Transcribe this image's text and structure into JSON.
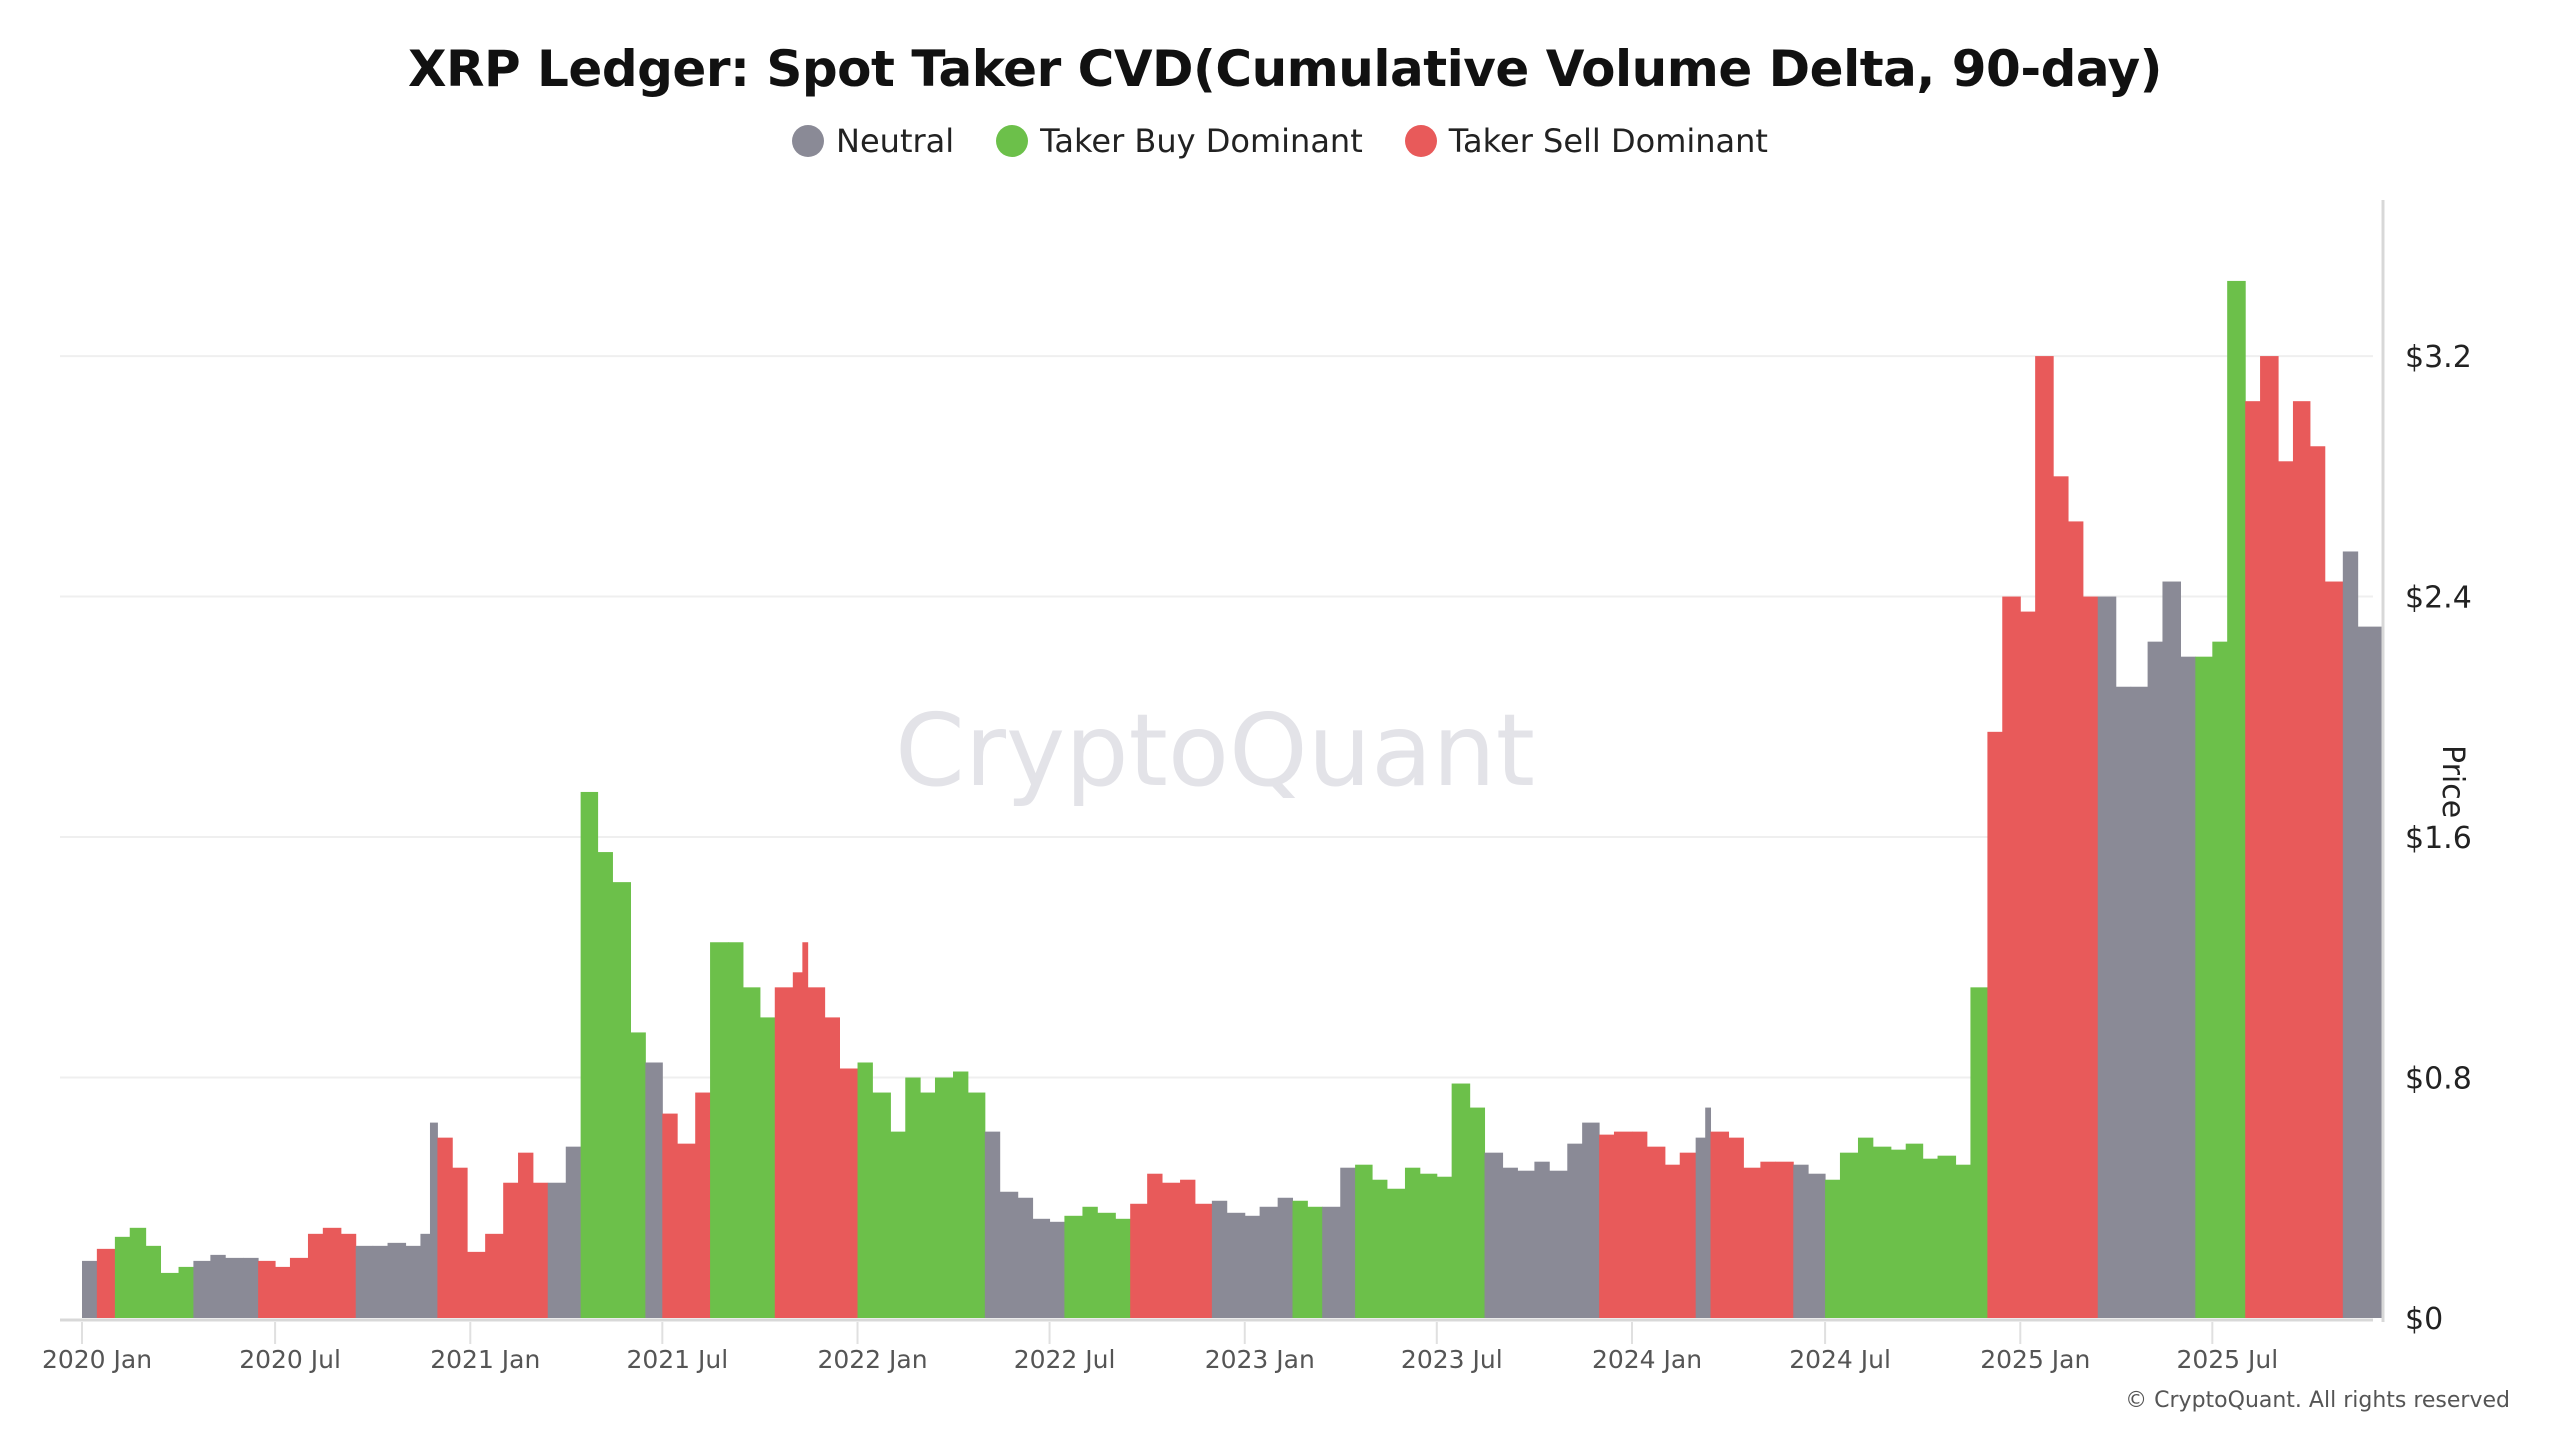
{
  "chart_data": {
    "type": "bar",
    "title": "XRP Ledger: Spot Taker CVD(Cumulative Volume Delta, 90-day)",
    "ylabel": "Price",
    "xlabel": "",
    "ylim": [
      0,
      3.7
    ],
    "yticks": [
      "$0",
      "$0.8",
      "$1.6",
      "$2.4",
      "$3.2"
    ],
    "ytick_values": [
      0,
      0.8,
      1.6,
      2.4,
      3.2
    ],
    "xticks": [
      "2020 Jan",
      "2020 Jul",
      "2021 Jan",
      "2021 Jul",
      "2022 Jan",
      "2022 Jul",
      "2023 Jan",
      "2023 Jul",
      "2024 Jan",
      "2024 Jul",
      "2025 Jan",
      "2025 Jul"
    ],
    "xtick_dates": [
      "2020-01-01",
      "2020-07-01",
      "2021-01-01",
      "2021-07-01",
      "2022-01-01",
      "2022-07-01",
      "2023-01-01",
      "2023-07-01",
      "2024-01-01",
      "2024-07-01",
      "2025-01-01",
      "2025-07-01"
    ],
    "grid": true,
    "legend_position": "top-center",
    "legend": [
      {
        "key": "N",
        "name": "Neutral",
        "color": "#8a8a96"
      },
      {
        "key": "B",
        "name": "Taker Buy Dominant",
        "color": "#6cc04a"
      },
      {
        "key": "S",
        "name": "Taker Sell Dominant",
        "color": "#e85a5a"
      }
    ],
    "points": [
      [
        "2020-01-01",
        0.19,
        "N"
      ],
      [
        "2020-01-15",
        0.23,
        "S"
      ],
      [
        "2020-02-01",
        0.27,
        "B"
      ],
      [
        "2020-02-15",
        0.3,
        "B"
      ],
      [
        "2020-03-01",
        0.24,
        "B"
      ],
      [
        "2020-03-15",
        0.15,
        "B"
      ],
      [
        "2020-04-01",
        0.17,
        "B"
      ],
      [
        "2020-04-15",
        0.19,
        "N"
      ],
      [
        "2020-05-01",
        0.21,
        "N"
      ],
      [
        "2020-05-15",
        0.2,
        "N"
      ],
      [
        "2020-06-01",
        0.2,
        "N"
      ],
      [
        "2020-06-15",
        0.19,
        "S"
      ],
      [
        "2020-07-01",
        0.17,
        "S"
      ],
      [
        "2020-07-15",
        0.2,
        "S"
      ],
      [
        "2020-08-01",
        0.28,
        "S"
      ],
      [
        "2020-08-15",
        0.3,
        "S"
      ],
      [
        "2020-09-01",
        0.28,
        "S"
      ],
      [
        "2020-09-15",
        0.24,
        "N"
      ],
      [
        "2020-10-01",
        0.24,
        "N"
      ],
      [
        "2020-10-15",
        0.25,
        "N"
      ],
      [
        "2020-11-01",
        0.24,
        "N"
      ],
      [
        "2020-11-15",
        0.28,
        "N"
      ],
      [
        "2020-11-24",
        0.65,
        "N"
      ],
      [
        "2020-12-01",
        0.6,
        "S"
      ],
      [
        "2020-12-15",
        0.5,
        "S"
      ],
      [
        "2020-12-29",
        0.22,
        "S"
      ],
      [
        "2021-01-15",
        0.28,
        "S"
      ],
      [
        "2021-02-01",
        0.45,
        "S"
      ],
      [
        "2021-02-15",
        0.55,
        "S"
      ],
      [
        "2021-03-01",
        0.45,
        "S"
      ],
      [
        "2021-03-15",
        0.45,
        "N"
      ],
      [
        "2021-04-01",
        0.57,
        "N"
      ],
      [
        "2021-04-15",
        1.75,
        "B"
      ],
      [
        "2021-05-01",
        1.55,
        "B"
      ],
      [
        "2021-05-15",
        1.45,
        "B"
      ],
      [
        "2021-06-01",
        0.95,
        "B"
      ],
      [
        "2021-06-15",
        0.85,
        "N"
      ],
      [
        "2021-07-01",
        0.68,
        "S"
      ],
      [
        "2021-07-15",
        0.58,
        "S"
      ],
      [
        "2021-08-01",
        0.75,
        "S"
      ],
      [
        "2021-08-15",
        1.25,
        "B"
      ],
      [
        "2021-09-01",
        1.25,
        "B"
      ],
      [
        "2021-09-15",
        1.1,
        "B"
      ],
      [
        "2021-10-01",
        1.0,
        "B"
      ],
      [
        "2021-10-15",
        1.1,
        "S"
      ],
      [
        "2021-11-01",
        1.15,
        "S"
      ],
      [
        "2021-11-10",
        1.25,
        "S"
      ],
      [
        "2021-11-15",
        1.1,
        "S"
      ],
      [
        "2021-12-01",
        1.0,
        "S"
      ],
      [
        "2021-12-15",
        0.83,
        "S"
      ],
      [
        "2022-01-01",
        0.85,
        "B"
      ],
      [
        "2022-01-15",
        0.75,
        "B"
      ],
      [
        "2022-02-01",
        0.62,
        "B"
      ],
      [
        "2022-02-15",
        0.8,
        "B"
      ],
      [
        "2022-03-01",
        0.75,
        "B"
      ],
      [
        "2022-03-15",
        0.8,
        "B"
      ],
      [
        "2022-04-01",
        0.82,
        "B"
      ],
      [
        "2022-04-15",
        0.75,
        "B"
      ],
      [
        "2022-05-01",
        0.62,
        "N"
      ],
      [
        "2022-05-15",
        0.42,
        "N"
      ],
      [
        "2022-06-01",
        0.4,
        "N"
      ],
      [
        "2022-06-15",
        0.33,
        "N"
      ],
      [
        "2022-07-01",
        0.32,
        "N"
      ],
      [
        "2022-07-15",
        0.34,
        "B"
      ],
      [
        "2022-08-01",
        0.37,
        "B"
      ],
      [
        "2022-08-15",
        0.35,
        "B"
      ],
      [
        "2022-09-01",
        0.33,
        "B"
      ],
      [
        "2022-09-15",
        0.38,
        "S"
      ],
      [
        "2022-10-01",
        0.48,
        "S"
      ],
      [
        "2022-10-15",
        0.45,
        "S"
      ],
      [
        "2022-11-01",
        0.46,
        "S"
      ],
      [
        "2022-11-15",
        0.38,
        "S"
      ],
      [
        "2022-12-01",
        0.39,
        "N"
      ],
      [
        "2022-12-15",
        0.35,
        "N"
      ],
      [
        "2023-01-01",
        0.34,
        "N"
      ],
      [
        "2023-01-15",
        0.37,
        "N"
      ],
      [
        "2023-02-01",
        0.4,
        "N"
      ],
      [
        "2023-02-15",
        0.39,
        "B"
      ],
      [
        "2023-03-01",
        0.37,
        "B"
      ],
      [
        "2023-03-15",
        0.37,
        "N"
      ],
      [
        "2023-04-01",
        0.5,
        "N"
      ],
      [
        "2023-04-15",
        0.51,
        "B"
      ],
      [
        "2023-05-01",
        0.46,
        "B"
      ],
      [
        "2023-05-15",
        0.43,
        "B"
      ],
      [
        "2023-06-01",
        0.5,
        "B"
      ],
      [
        "2023-06-15",
        0.48,
        "B"
      ],
      [
        "2023-07-01",
        0.47,
        "B"
      ],
      [
        "2023-07-15",
        0.78,
        "B"
      ],
      [
        "2023-08-01",
        0.7,
        "B"
      ],
      [
        "2023-08-15",
        0.55,
        "N"
      ],
      [
        "2023-09-01",
        0.5,
        "N"
      ],
      [
        "2023-09-15",
        0.49,
        "N"
      ],
      [
        "2023-10-01",
        0.52,
        "N"
      ],
      [
        "2023-10-15",
        0.49,
        "N"
      ],
      [
        "2023-11-01",
        0.58,
        "N"
      ],
      [
        "2023-11-15",
        0.65,
        "N"
      ],
      [
        "2023-12-01",
        0.61,
        "S"
      ],
      [
        "2023-12-15",
        0.62,
        "S"
      ],
      [
        "2024-01-01",
        0.62,
        "S"
      ],
      [
        "2024-01-15",
        0.57,
        "S"
      ],
      [
        "2024-02-01",
        0.51,
        "S"
      ],
      [
        "2024-02-15",
        0.55,
        "S"
      ],
      [
        "2024-03-01",
        0.6,
        "N"
      ],
      [
        "2024-03-10",
        0.7,
        "N"
      ],
      [
        "2024-03-15",
        0.62,
        "S"
      ],
      [
        "2024-04-01",
        0.6,
        "S"
      ],
      [
        "2024-04-15",
        0.5,
        "S"
      ],
      [
        "2024-05-01",
        0.52,
        "S"
      ],
      [
        "2024-05-15",
        0.52,
        "S"
      ],
      [
        "2024-06-01",
        0.51,
        "N"
      ],
      [
        "2024-06-15",
        0.48,
        "N"
      ],
      [
        "2024-07-01",
        0.46,
        "B"
      ],
      [
        "2024-07-15",
        0.55,
        "B"
      ],
      [
        "2024-08-01",
        0.6,
        "B"
      ],
      [
        "2024-08-15",
        0.57,
        "B"
      ],
      [
        "2024-09-01",
        0.56,
        "B"
      ],
      [
        "2024-09-15",
        0.58,
        "B"
      ],
      [
        "2024-10-01",
        0.53,
        "B"
      ],
      [
        "2024-10-15",
        0.54,
        "B"
      ],
      [
        "2024-11-01",
        0.51,
        "B"
      ],
      [
        "2024-11-15",
        1.1,
        "B"
      ],
      [
        "2024-12-01",
        1.95,
        "S"
      ],
      [
        "2024-12-15",
        2.4,
        "S"
      ],
      [
        "2025-01-01",
        2.35,
        "S"
      ],
      [
        "2025-01-15",
        3.2,
        "S"
      ],
      [
        "2025-02-01",
        2.8,
        "S"
      ],
      [
        "2025-02-15",
        2.65,
        "S"
      ],
      [
        "2025-03-01",
        2.4,
        "S"
      ],
      [
        "2025-03-15",
        2.4,
        "N"
      ],
      [
        "2025-04-01",
        2.1,
        "N"
      ],
      [
        "2025-04-15",
        2.1,
        "N"
      ],
      [
        "2025-05-01",
        2.25,
        "N"
      ],
      [
        "2025-05-15",
        2.45,
        "N"
      ],
      [
        "2025-06-01",
        2.2,
        "N"
      ],
      [
        "2025-06-15",
        2.2,
        "B"
      ],
      [
        "2025-07-01",
        2.25,
        "B"
      ],
      [
        "2025-07-15",
        3.45,
        "B"
      ],
      [
        "2025-08-01",
        3.05,
        "S"
      ],
      [
        "2025-08-15",
        3.2,
        "S"
      ],
      [
        "2025-09-01",
        2.85,
        "S"
      ],
      [
        "2025-09-15",
        3.05,
        "S"
      ],
      [
        "2025-10-01",
        2.9,
        "S"
      ],
      [
        "2025-10-15",
        2.45,
        "S"
      ],
      [
        "2025-11-01",
        2.55,
        "N"
      ],
      [
        "2025-11-15",
        2.3,
        "N"
      ]
    ]
  },
  "watermark": "CryptoQuant",
  "copyright": "© CryptoQuant. All rights reserved"
}
